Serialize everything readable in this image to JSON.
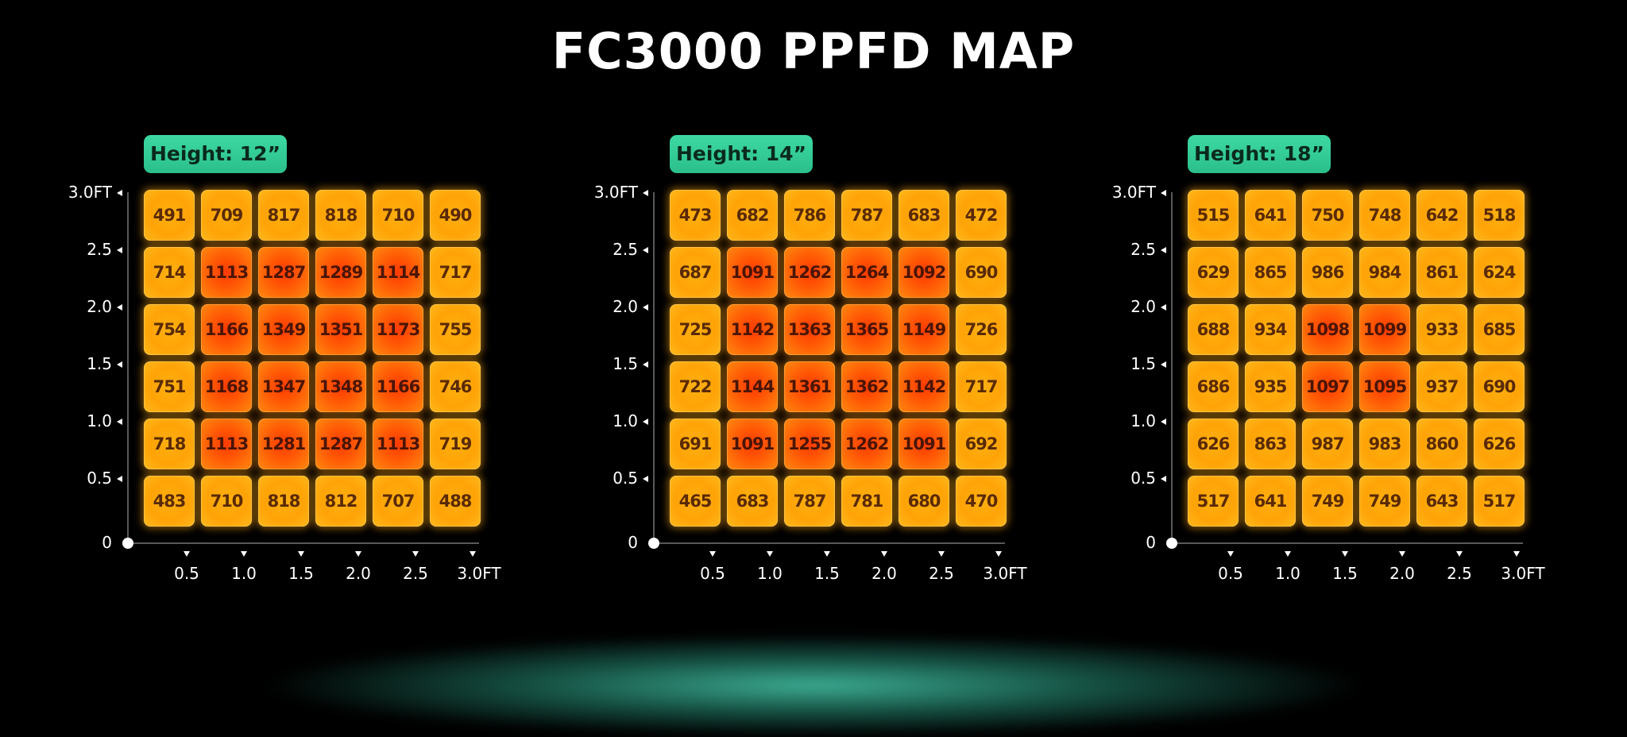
{
  "title": "FC3000 PPFD MAP",
  "colors": {
    "low_cell": "#ffa307",
    "high_cell": "#ff4a03",
    "badge": "#35cf97",
    "glow": "#46c8aa"
  },
  "chart_data": [
    {
      "type": "heatmap",
      "label": "Height: 12”",
      "y_ticks": [
        "3.0FT",
        "2.5",
        "2.0",
        "1.5",
        "1.0",
        "0.5",
        "0"
      ],
      "x_ticks": [
        "0.5",
        "1.0",
        "1.5",
        "2.0",
        "2.5",
        "3.0FT"
      ],
      "values": [
        [
          491,
          709,
          817,
          818,
          710,
          490
        ],
        [
          714,
          1113,
          1287,
          1289,
          1114,
          717
        ],
        [
          754,
          1166,
          1349,
          1351,
          1173,
          755
        ],
        [
          751,
          1168,
          1347,
          1348,
          1166,
          746
        ],
        [
          718,
          1113,
          1281,
          1287,
          1113,
          719
        ],
        [
          483,
          710,
          818,
          812,
          707,
          488
        ]
      ]
    },
    {
      "type": "heatmap",
      "label": "Height: 14”",
      "y_ticks": [
        "3.0FT",
        "2.5",
        "2.0",
        "1.5",
        "1.0",
        "0.5",
        "0"
      ],
      "x_ticks": [
        "0.5",
        "1.0",
        "1.5",
        "2.0",
        "2.5",
        "3.0FT"
      ],
      "values": [
        [
          473,
          682,
          786,
          787,
          683,
          472
        ],
        [
          687,
          1091,
          1262,
          1264,
          1092,
          690
        ],
        [
          725,
          1142,
          1363,
          1365,
          1149,
          726
        ],
        [
          722,
          1144,
          1361,
          1362,
          1142,
          717
        ],
        [
          691,
          1091,
          1255,
          1262,
          1091,
          692
        ],
        [
          465,
          683,
          787,
          781,
          680,
          470
        ]
      ]
    },
    {
      "type": "heatmap",
      "label": "Height: 18”",
      "y_ticks": [
        "3.0FT",
        "2.5",
        "2.0",
        "1.5",
        "1.0",
        "0.5",
        "0"
      ],
      "x_ticks": [
        "0.5",
        "1.0",
        "1.5",
        "2.0",
        "2.5",
        "3.0FT"
      ],
      "values": [
        [
          515,
          641,
          750,
          748,
          642,
          518
        ],
        [
          629,
          865,
          986,
          984,
          861,
          624
        ],
        [
          688,
          934,
          1098,
          1099,
          933,
          685
        ],
        [
          686,
          935,
          1097,
          1095,
          937,
          690
        ],
        [
          626,
          863,
          987,
          983,
          860,
          626
        ],
        [
          517,
          641,
          749,
          749,
          643,
          517
        ]
      ]
    }
  ]
}
